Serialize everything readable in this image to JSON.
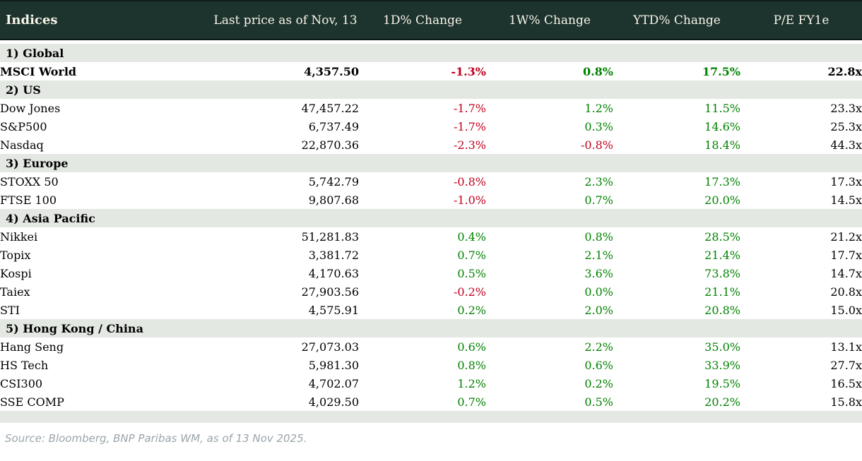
{
  "chart_data": {
    "type": "table",
    "title": "Indices",
    "columns": [
      "Indices",
      "Last price as of Nov, 13",
      "1D% Change",
      "1W% Change",
      "YTD% Change",
      "P/E FY1e"
    ],
    "sections": [
      {
        "label": "1) Global",
        "rows": [
          {
            "name": "MSCI World",
            "last_price": "4,357.50",
            "d1": "-1.3%",
            "w1": "0.8%",
            "ytd": "17.5%",
            "pe": "22.8x",
            "emphasis": true
          }
        ]
      },
      {
        "label": "2) US",
        "rows": [
          {
            "name": "Dow Jones",
            "last_price": "47,457.22",
            "d1": "-1.7%",
            "w1": "1.2%",
            "ytd": "11.5%",
            "pe": "23.3x"
          },
          {
            "name": "S&P500",
            "last_price": "6,737.49",
            "d1": "-1.7%",
            "w1": "0.3%",
            "ytd": "14.6%",
            "pe": "25.3x"
          },
          {
            "name": "Nasdaq",
            "last_price": "22,870.36",
            "d1": "-2.3%",
            "w1": "-0.8%",
            "ytd": "18.4%",
            "pe": "44.3x"
          }
        ]
      },
      {
        "label": "3) Europe",
        "rows": [
          {
            "name": "STOXX 50",
            "last_price": "5,742.79",
            "d1": "-0.8%",
            "w1": "2.3%",
            "ytd": "17.3%",
            "pe": "17.3x"
          },
          {
            "name": "FTSE 100",
            "last_price": "9,807.68",
            "d1": "-1.0%",
            "w1": "0.7%",
            "ytd": "20.0%",
            "pe": "14.5x"
          }
        ]
      },
      {
        "label": "4) Asia Pacific",
        "rows": [
          {
            "name": "Nikkei",
            "last_price": "51,281.83",
            "d1": "0.4%",
            "w1": "0.8%",
            "ytd": "28.5%",
            "pe": "21.2x"
          },
          {
            "name": "Topix",
            "last_price": "3,381.72",
            "d1": "0.7%",
            "w1": "2.1%",
            "ytd": "21.4%",
            "pe": "17.7x"
          },
          {
            "name": "Kospi",
            "last_price": "4,170.63",
            "d1": "0.5%",
            "w1": "3.6%",
            "ytd": "73.8%",
            "pe": "14.7x"
          },
          {
            "name": "Taiex",
            "last_price": "27,903.56",
            "d1": "-0.2%",
            "w1": "0.0%",
            "ytd": "21.1%",
            "pe": "20.8x"
          },
          {
            "name": "STI",
            "last_price": "4,575.91",
            "d1": "0.2%",
            "w1": "2.0%",
            "ytd": "20.8%",
            "pe": "15.0x"
          }
        ]
      },
      {
        "label": "5) Hong Kong / China",
        "rows": [
          {
            "name": "Hang Seng",
            "last_price": "27,073.03",
            "d1": "0.6%",
            "w1": "2.2%",
            "ytd": "35.0%",
            "pe": "13.1x"
          },
          {
            "name": "HS Tech",
            "last_price": "5,981.30",
            "d1": "0.8%",
            "w1": "0.6%",
            "ytd": "33.9%",
            "pe": "27.7x"
          },
          {
            "name": "CSI300",
            "last_price": "4,702.07",
            "d1": "1.2%",
            "w1": "0.2%",
            "ytd": "19.5%",
            "pe": "16.5x"
          },
          {
            "name": "SSE COMP",
            "last_price": "4,029.50",
            "d1": "0.7%",
            "w1": "0.5%",
            "ytd": "20.2%",
            "pe": "15.8x"
          }
        ]
      }
    ]
  },
  "footer": {
    "source_note": "Source: Bloomberg, BNP Paribas WM, as of 13 Nov 2025."
  },
  "colors": {
    "header_bg": "#1d332d",
    "header_text": "#f8f5ea",
    "section_row_bg": "#e4e8e3",
    "positive_change": "#008200",
    "negative_change": "#c1001f"
  }
}
